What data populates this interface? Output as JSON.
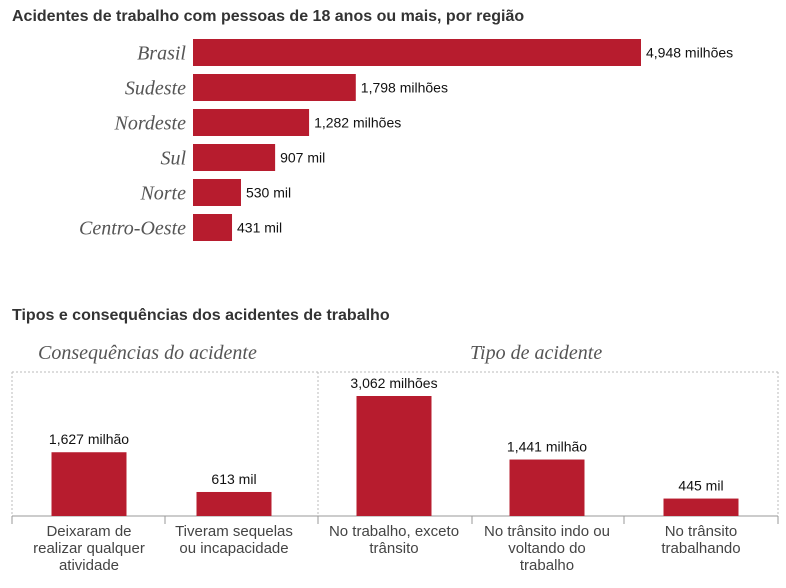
{
  "titles": {
    "top": "Acidentes de trabalho com pessoas de 18 anos ou mais, por região",
    "bottom": "Tipos e consequências dos acidentes de trabalho",
    "consequences": "Consequências do acidente",
    "type": "Tipo de acidente"
  },
  "colors": {
    "bar": "#b71c2e",
    "axis": "#999999",
    "dotted": "#bbbbbb"
  },
  "chart_data": [
    {
      "type": "bar",
      "orientation": "horizontal",
      "title": "Acidentes de trabalho com pessoas de 18 anos ou mais, por região",
      "categories": [
        "Brasil",
        "Sudeste",
        "Nordeste",
        "Sul",
        "Norte",
        "Centro-Oeste"
      ],
      "values": [
        4948,
        1798,
        1282,
        907,
        530,
        431
      ],
      "data_labels": [
        "4,948 milhões",
        "1,798 milhões",
        "1,282 milhões",
        "907 mil",
        "530 mil",
        "431 mil"
      ],
      "unit": "mil",
      "xlim": [
        0,
        4948
      ]
    },
    {
      "type": "bar",
      "orientation": "vertical",
      "title": "Tipos e consequências dos acidentes de trabalho",
      "groups": [
        {
          "name": "Consequências do acidente",
          "categories": [
            [
              "Deixaram de",
              "realizar qualquer",
              "atividade"
            ],
            [
              "Tiveram sequelas",
              "ou incapacidade"
            ]
          ],
          "values": [
            1627,
            613
          ],
          "data_labels": [
            "1,627 milhão",
            "613 mil"
          ]
        },
        {
          "name": "Tipo de acidente",
          "categories": [
            [
              "No trabalho, exceto",
              "trânsito"
            ],
            [
              "No trânsito indo ou",
              "voltando do",
              "trabalho"
            ],
            [
              "No trânsito",
              "trabalhando"
            ]
          ],
          "values": [
            3062,
            1441,
            445
          ],
          "data_labels": [
            "3,062 milhões",
            "1,441 milhão",
            "445 mil"
          ]
        }
      ],
      "unit": "mil",
      "ylim": [
        0,
        3062
      ]
    }
  ]
}
